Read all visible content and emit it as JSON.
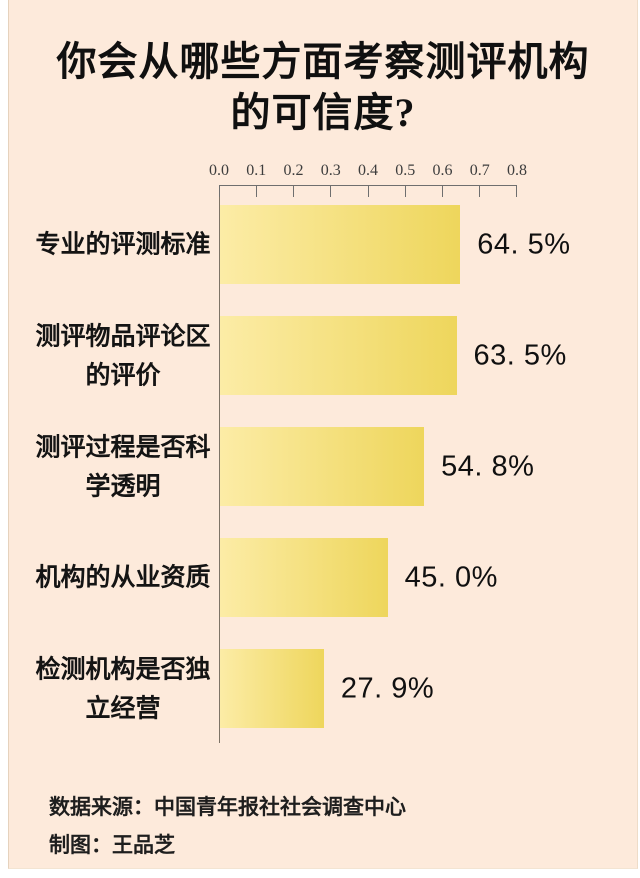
{
  "page": {
    "background_color": "#fdeadb",
    "title_lines": [
      "你会从哪些方面考察测评机构",
      "的可信度?"
    ]
  },
  "chart_data": {
    "type": "bar",
    "orientation": "horizontal",
    "title": "你会从哪些方面考察测评机构的可信度?",
    "categories": [
      "专业的评测标准",
      "测评物品评论区的评价",
      "测评过程是否科学透明",
      "机构的从业资质",
      "检测机构是否独立经营"
    ],
    "values": [
      64.5,
      63.5,
      54.8,
      45.0,
      27.9
    ],
    "value_labels": [
      "64. 5%",
      "63. 5%",
      "54. 8%",
      "45. 0%",
      "27. 9%"
    ],
    "xticks": [
      "0.0",
      "0.1",
      "0.2",
      "0.3",
      "0.4",
      "0.5",
      "0.6",
      "0.7",
      "0.8"
    ],
    "xlim": [
      0,
      0.8
    ],
    "xlabel": "",
    "ylabel": "",
    "grid": "off",
    "legend": "none",
    "bar_gradient_left": "#fcecа6",
    "bar_gradient_left_hex": "#fcecA6",
    "bar_gradient": [
      "#fceca6",
      "#eed65c"
    ],
    "axis_color": "#6f6f6f"
  },
  "footer": {
    "source": "数据来源：中国青年报社社会调查中心",
    "credit": "制图：王品芝"
  }
}
